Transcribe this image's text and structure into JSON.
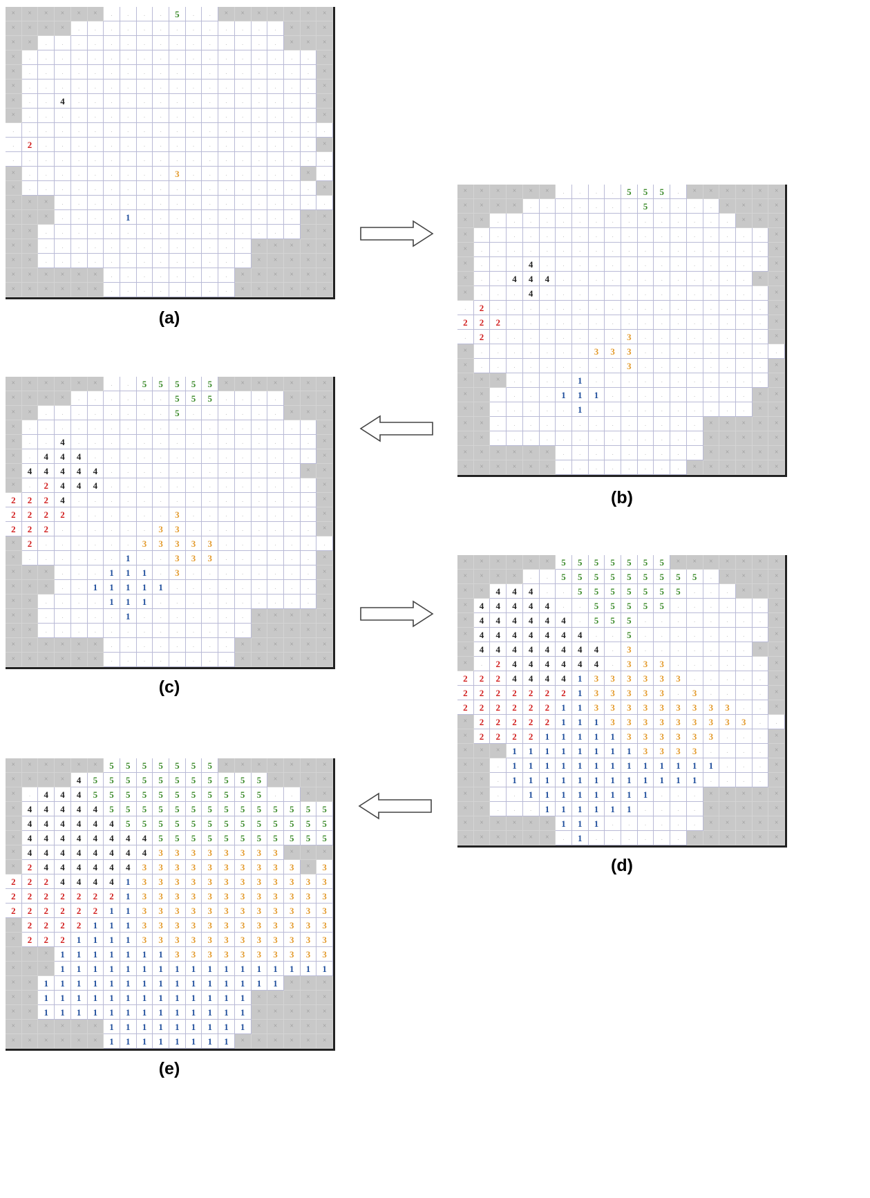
{
  "panels": [
    {
      "caption": "(a)",
      "rows": [
        "XXXXXX....5..XXXXXXX",
        "XXXX.............XXX",
        "XX...............XXX",
        "X..................X",
        "X..................X",
        "X..................X",
        "X..4...............X",
        "X..................X",
        "....................",
        ".2.................X",
        "....................",
        "X.........3.......X.",
        "X..................X",
        "XXX.................",
        "XXX....1..........XX",
        "XX................XX",
        "XX.............XXXXX",
        "XX.............XXXXX",
        "XXXXXX........XXXXXX",
        "XXXXXX........XXXXXX"
      ]
    },
    {
      "caption": "(b)",
      "rows": [
        "XXXXXX....555.XXXXXX",
        "XXXX.......5....XXXX",
        "XX...............XXX",
        "X..................X",
        "X..................X",
        "X...4..............X",
        "X..444............XX",
        "X...4..............X",
        ".2.................X",
        "222................X",
        ".2........3........X",
        "X.......333.........",
        "X.........3........X",
        "XXX....1...........X",
        "XX....111.........XX",
        "XX.....1..........XX",
        "XX.............XXXXX",
        "XX.............XXXXX",
        "XXXXXX.........XXXXX",
        "XXXXXX........XXXXXX"
      ]
    },
    {
      "caption": "(c)",
      "rows": [
        "XXXXXX..55555XXXXXXX",
        "XXXX......555....XXX",
        "XX........5......XXX",
        "X..................X",
        "X..4...............X",
        "X.444..............X",
        "X44444............XX",
        "X.2444.............X",
        "2224...............X",
        "2222......3........X",
        "222......33........X",
        "X2......33333.......",
        "X......1..333......X",
        "XXX...111.3........X",
        "XXX..11111.........X",
        "XX....111..........X",
        "XX.....1.......XXXXX",
        "XX.............XXXXX",
        "XXXXXX........XXXXXX",
        "XXXXXX........XXXXXX"
      ]
    },
    {
      "caption": "(d)",
      "rows": [
        "XXXXXX5555555XXXXXXX",
        "XXXX..555555555.XXXX",
        "XX444..5555555...XXX",
        "X44444..55555......X",
        "X444444.555........X",
        "X4444444..5........X",
        "X44444444.3.......XX",
        "X.2444444.333......X",
        "22244441333333.....X",
        "2222222133333.3....X",
        "22222211333333333..X",
        "X22222111333333333..",
        "X222211111333333...X",
        "XXX111111113333....X",
        "XX.1111111111111...X",
        "XX.111111111111....X",
        "XX..11111111...XXXXX",
        "XX...111111....XXXXX",
        "XXXXXX111......XXXXX",
        "XXXXXX.1......XXXXXX"
      ]
    },
    {
      "caption": "(e)",
      "rows": [
        "XXXXXX5555555XXXXXXX",
        "XXXX455555555555XXXX",
        "X.44455555555555..XX",
        "X4444455555555555555",
        "X4444445555555555555",
        "X4444444455555555555",
        "X4444444433333333XXX",
        "X24444443333333333X3",
        "22244441333333333333",
        "22222221333333333333",
        "22222211333333333333",
        "X2222111333333333333",
        "X2221111333333333333",
        "XXX11111113333333333",
        "XXX11111111111111111",
        "XX111111111111111XXX",
        "XX1111111111111XXXXX",
        "XX1111111111111XXXXX",
        "XXXXXX111111111XXXXX",
        "XXXXXX11111111XXXXXX"
      ]
    }
  ],
  "colors": {
    "1": "#1f4e9c",
    "2": "#d11d1d",
    "3": "#e39a2c",
    "4": "#222222",
    "5": "#3b8a2a",
    "blocked": "#c8c8c8",
    "grid_line": "#b9bad6"
  },
  "icons": {
    "blocked_cell": "x-mark",
    "arrow_1": "arrow-right",
    "arrow_2": "arrow-left",
    "arrow_3": "arrow-right",
    "arrow_4": "arrow-left"
  }
}
